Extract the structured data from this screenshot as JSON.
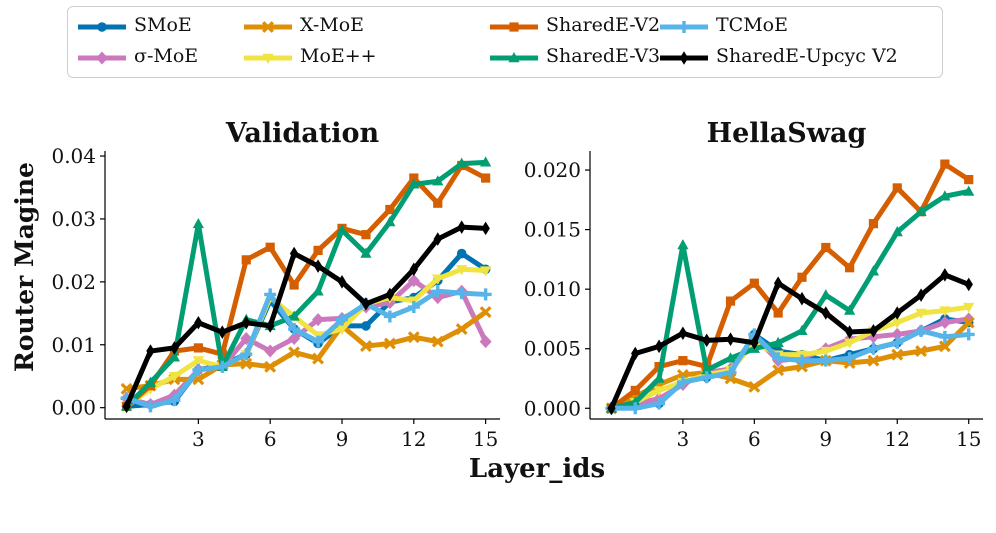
{
  "figure": {
    "xlabel": "Layer_ids",
    "ylabel": "Router Magine"
  },
  "colors": {
    "SMoE": "#0173b2",
    "sigma-MoE": "#cc78bc",
    "X-MoE": "#de8f05",
    "MoE++": "#f0e442",
    "SharedE-V2": "#d55e00",
    "SharedE-V3": "#029e73",
    "TCMoE": "#56b4e9",
    "SharedE-Upcyc V2": "#000000"
  },
  "legend": [
    {
      "label": "SMoE",
      "marker": "circle"
    },
    {
      "label": "σ-MoE",
      "marker": "diamond"
    },
    {
      "label": "X-MoE",
      "marker": "x"
    },
    {
      "label": "MoE++",
      "marker": "triangle-down"
    },
    {
      "label": "SharedE-V2",
      "marker": "square"
    },
    {
      "label": "SharedE-V3",
      "marker": "triangle-up"
    },
    {
      "label": "TCMoE",
      "marker": "plus"
    },
    {
      "label": "SharedE-Upcyc V2",
      "marker": "thin-diamond"
    }
  ],
  "chart_data": [
    {
      "type": "line",
      "title": "Validation",
      "xlabel": "Layer_ids",
      "ylabel": "Router Magine",
      "x": [
        0,
        1,
        2,
        3,
        4,
        5,
        6,
        7,
        8,
        9,
        10,
        11,
        12,
        13,
        14,
        15
      ],
      "xticks": [
        "3",
        "6",
        "9",
        "12",
        "15"
      ],
      "yticks": [
        "0.00",
        "0.01",
        "0.02",
        "0.03",
        "0.04"
      ],
      "xlim": [
        -0.9,
        15.6
      ],
      "ylim": [
        -0.0018,
        0.0408
      ],
      "grid": false,
      "series": [
        {
          "name": "SMoE",
          "values": [
            0.0002,
            0.0005,
            0.001,
            0.006,
            0.0068,
            0.0085,
            0.017,
            0.0125,
            0.0102,
            0.013,
            0.013,
            0.0168,
            0.0175,
            0.0202,
            0.0245,
            0.022
          ]
        },
        {
          "name": "σ-MoE",
          "values": [
            0.0015,
            0.0005,
            0.002,
            0.006,
            0.0065,
            0.011,
            0.009,
            0.011,
            0.014,
            0.0142,
            0.016,
            0.0167,
            0.0202,
            0.0175,
            0.0185,
            0.0105
          ]
        },
        {
          "name": "X-MoE",
          "values": [
            0.003,
            0.0035,
            0.0045,
            0.0045,
            0.0068,
            0.007,
            0.0065,
            0.0088,
            0.0078,
            0.013,
            0.0098,
            0.0102,
            0.0112,
            0.0105,
            0.0125,
            0.0152
          ]
        },
        {
          "name": "MoE++",
          "values": [
            0.0002,
            0.003,
            0.005,
            0.0075,
            0.0065,
            0.0085,
            0.0175,
            0.0145,
            0.0115,
            0.0125,
            0.0165,
            0.0175,
            0.017,
            0.0205,
            0.022,
            0.0218
          ]
        },
        {
          "name": "SharedE-V2",
          "values": [
            0.0002,
            0.0035,
            0.009,
            0.0095,
            0.0085,
            0.0235,
            0.0255,
            0.0195,
            0.025,
            0.0285,
            0.0275,
            0.0315,
            0.0365,
            0.0325,
            0.0385,
            0.0365
          ]
        },
        {
          "name": "SharedE-V3",
          "values": [
            0.0002,
            0.004,
            0.008,
            0.0292,
            0.0065,
            0.014,
            0.013,
            0.0145,
            0.0185,
            0.0282,
            0.0245,
            0.0295,
            0.0355,
            0.036,
            0.0388,
            0.039
          ]
        },
        {
          "name": "TCMoE",
          "values": [
            0.0015,
            0.0002,
            0.0012,
            0.006,
            0.0065,
            0.0085,
            0.018,
            0.0125,
            0.0105,
            0.014,
            0.0165,
            0.0145,
            0.016,
            0.0185,
            0.0182,
            0.018
          ]
        },
        {
          "name": "SharedE-Upcyc V2",
          "values": [
            0.0002,
            0.009,
            0.0095,
            0.0135,
            0.012,
            0.0135,
            0.013,
            0.0245,
            0.0225,
            0.02,
            0.0165,
            0.018,
            0.022,
            0.0268,
            0.0287,
            0.0285
          ]
        }
      ]
    },
    {
      "type": "line",
      "title": "HellaSwag",
      "xlabel": "Layer_ids",
      "ylabel": "",
      "x": [
        0,
        1,
        2,
        3,
        4,
        5,
        6,
        7,
        8,
        9,
        10,
        11,
        12,
        13,
        14,
        15
      ],
      "xticks": [
        "3",
        "6",
        "9",
        "12",
        "15"
      ],
      "yticks": [
        "0.000",
        "0.005",
        "0.010",
        "0.015",
        "0.020"
      ],
      "xlim": [
        -0.9,
        15.6
      ],
      "ylim": [
        -0.0009,
        0.0216
      ],
      "grid": false,
      "series": [
        {
          "name": "SMoE",
          "values": [
            0.0,
            0.0002,
            0.0004,
            0.0022,
            0.0026,
            0.003,
            0.0062,
            0.0048,
            0.0045,
            0.004,
            0.0045,
            0.005,
            0.0055,
            0.0065,
            0.0075,
            0.0072
          ]
        },
        {
          "name": "σ-MoE",
          "values": [
            0.0,
            0.0004,
            0.0008,
            0.002,
            0.003,
            0.0033,
            0.006,
            0.004,
            0.0042,
            0.005,
            0.0058,
            0.006,
            0.0062,
            0.0065,
            0.0072,
            0.0075
          ]
        },
        {
          "name": "X-MoE",
          "values": [
            0.0,
            0.001,
            0.002,
            0.0028,
            0.003,
            0.0025,
            0.0018,
            0.0032,
            0.0035,
            0.004,
            0.0038,
            0.004,
            0.0045,
            0.0048,
            0.0052,
            0.0072
          ]
        },
        {
          "name": "MoE++",
          "values": [
            0.0,
            0.0005,
            0.0015,
            0.0022,
            0.0028,
            0.0032,
            0.0055,
            0.0045,
            0.0045,
            0.0048,
            0.0055,
            0.0065,
            0.0072,
            0.008,
            0.0082,
            0.0085
          ]
        },
        {
          "name": "SharedE-V2",
          "values": [
            0.0,
            0.0015,
            0.0035,
            0.004,
            0.0035,
            0.009,
            0.0105,
            0.008,
            0.011,
            0.0135,
            0.0118,
            0.0155,
            0.0185,
            0.0165,
            0.0205,
            0.0192
          ]
        },
        {
          "name": "SharedE-V3",
          "values": [
            0.0,
            0.0005,
            0.0025,
            0.0137,
            0.0032,
            0.0042,
            0.005,
            0.0055,
            0.0065,
            0.0095,
            0.0082,
            0.0115,
            0.0148,
            0.0165,
            0.0178,
            0.0182
          ]
        },
        {
          "name": "TCMoE",
          "values": [
            0.0,
            0.0,
            0.0004,
            0.0022,
            0.0026,
            0.003,
            0.0062,
            0.0042,
            0.004,
            0.004,
            0.0042,
            0.005,
            0.0055,
            0.0065,
            0.006,
            0.0062
          ]
        },
        {
          "name": "SharedE-Upcyc V2",
          "values": [
            0.0,
            0.0046,
            0.0052,
            0.0063,
            0.0057,
            0.0058,
            0.0055,
            0.0105,
            0.0092,
            0.008,
            0.0064,
            0.0065,
            0.008,
            0.0095,
            0.0112,
            0.0104
          ]
        }
      ]
    }
  ]
}
